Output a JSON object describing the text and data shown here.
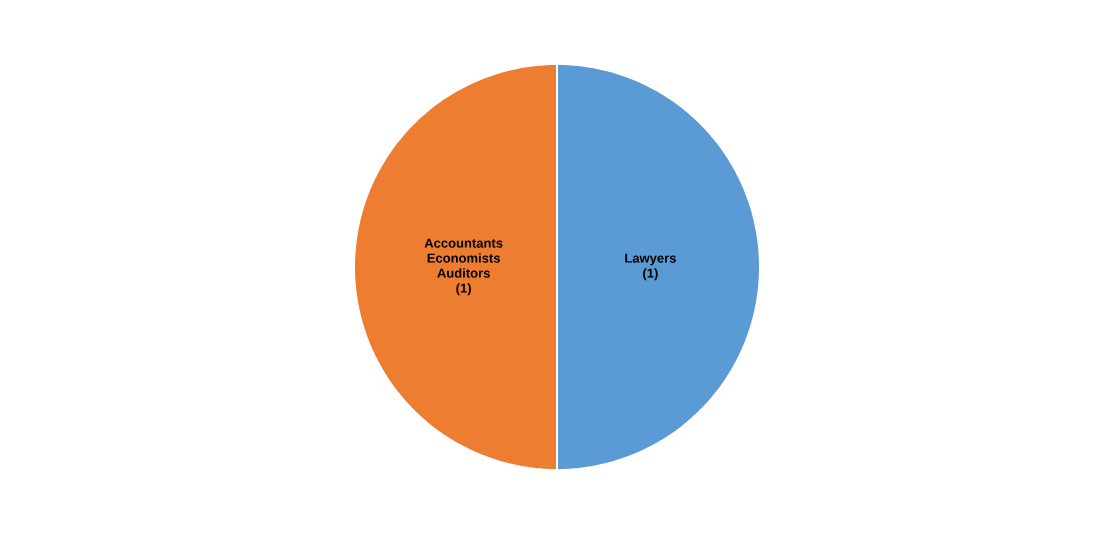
{
  "chart_data": {
    "type": "pie",
    "categories": [
      "Lawyers",
      "Accountants Economists Auditors"
    ],
    "values": [
      1,
      1
    ],
    "value_labels": [
      "(1)",
      "(1)"
    ],
    "colors": [
      "#5b9bd5",
      "#ed7d31"
    ]
  }
}
